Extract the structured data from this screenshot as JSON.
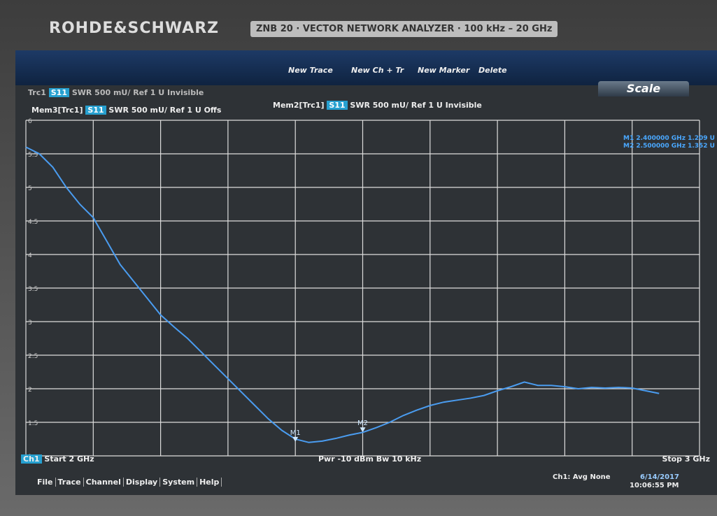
{
  "header": {
    "brand": "ROHDE&SCHWARZ",
    "model": "ZNB 20 · VECTOR NETWORK ANALYZER · 100 kHz – 20 GHz"
  },
  "toolbar": {
    "buttons": [
      "New Trace",
      "New Ch + Tr",
      "New Marker",
      "Delete"
    ],
    "tab": "Scale"
  },
  "traces": [
    {
      "name": "Trc1",
      "param": "S11",
      "info": "SWR 500 mU/ Ref 1 U Invisible"
    },
    {
      "name": "Mem2[Trc1]",
      "param": "S11",
      "info": "SWR 500 mU/ Ref 1 U Invisible"
    },
    {
      "name": "Mem3[Trc1]",
      "param": "S11",
      "info": "SWR 500 mU/ Ref 1 U Offs"
    }
  ],
  "chart_data": {
    "type": "line",
    "x": [
      2.0,
      2.02,
      2.04,
      2.06,
      2.08,
      2.1,
      2.12,
      2.14,
      2.16,
      2.18,
      2.2,
      2.22,
      2.24,
      2.26,
      2.28,
      2.3,
      2.32,
      2.34,
      2.36,
      2.38,
      2.4,
      2.42,
      2.44,
      2.46,
      2.48,
      2.5,
      2.52,
      2.54,
      2.56,
      2.58,
      2.6,
      2.62,
      2.64,
      2.66,
      2.68,
      2.7,
      2.72,
      2.74,
      2.76,
      2.78,
      2.8,
      2.82,
      2.84,
      2.86,
      2.88,
      2.9,
      2.92,
      2.94
    ],
    "series": [
      {
        "color": "#4a9cf0",
        "values": [
          5.6,
          5.5,
          5.3,
          5.0,
          4.75,
          4.55,
          4.2,
          3.85,
          3.6,
          3.35,
          3.1,
          2.92,
          2.75,
          2.55,
          2.35,
          2.15,
          1.95,
          1.75,
          1.55,
          1.38,
          1.25,
          1.2,
          1.22,
          1.26,
          1.31,
          1.35,
          1.42,
          1.5,
          1.6,
          1.68,
          1.75,
          1.8,
          1.83,
          1.86,
          1.9,
          1.97,
          2.03,
          2.1,
          2.05,
          2.05,
          2.03,
          2.0,
          2.02,
          2.01,
          2.02,
          2.01,
          1.97,
          1.93
        ]
      }
    ],
    "xlim": [
      2,
      3
    ],
    "ylim": [
      1,
      6
    ],
    "yticks": [
      1,
      1.5,
      2,
      2.5,
      3,
      3.5,
      4,
      4.5,
      5,
      5.5,
      6
    ],
    "grid": true,
    "markers": [
      {
        "label": "M1",
        "x": 2.4,
        "y": 1.209,
        "readout": "M1 2.400000 GHz 1.209 U"
      },
      {
        "label": "M2",
        "x": 2.5,
        "y": 1.352,
        "readout": "M2 2.500000 GHz 1.352 U"
      }
    ]
  },
  "footer": {
    "channel": "Ch1",
    "start": "Start 2 GHz",
    "center": "Pwr -10 dBm Bw 10 kHz",
    "stop": "Stop 3 GHz"
  },
  "menu": [
    "File",
    "Trace",
    "Channel",
    "Display",
    "System",
    "Help"
  ],
  "status": {
    "channel": "Ch1:",
    "avg": "Avg None",
    "date": "6/14/2017",
    "time": "10:06:55 PM"
  }
}
